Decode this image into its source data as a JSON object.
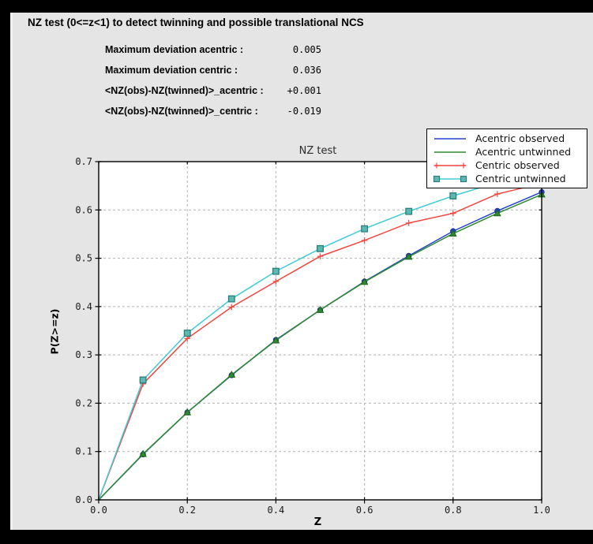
{
  "colors": {
    "frame": "#000000",
    "panel_bg": "#e5e5e5",
    "plot_bg": "#ffffff",
    "grid": "#b3b3b3",
    "axis": "#000000"
  },
  "header": {
    "title": "NZ test (0<=z<1) to detect twinning and possible translational NCS"
  },
  "stats": [
    {
      "label": "Maximum deviation acentric :",
      "value": "0.005"
    },
    {
      "label": "Maximum deviation centric :",
      "value": "0.036"
    },
    {
      "label": "<NZ(obs)-NZ(twinned)>_acentric :",
      "value": "+0.001"
    },
    {
      "label": "<NZ(obs)-NZ(twinned)>_centric :",
      "value": "-0.019"
    }
  ],
  "chart_data": {
    "type": "line",
    "title": "NZ test",
    "xlabel": "Z",
    "ylabel": "P(Z>=z)",
    "xlim": [
      0.0,
      1.0
    ],
    "ylim": [
      0.0,
      0.7
    ],
    "x_ticks": [
      "0.0",
      "0.2",
      "0.4",
      "0.6",
      "0.8",
      "1.0"
    ],
    "y_ticks": [
      "0.0",
      "0.1",
      "0.2",
      "0.3",
      "0.4",
      "0.5",
      "0.6",
      "0.7"
    ],
    "grid": "dashed",
    "legend_position": "upper right",
    "x": [
      0.0,
      0.1,
      0.2,
      0.3,
      0.4,
      0.5,
      0.6,
      0.7,
      0.8,
      0.9,
      1.0
    ],
    "series": [
      {
        "name": "Acentric observed",
        "color": "#2343cf",
        "marker": "circle",
        "marker_fill": "#2343cf",
        "marker_edge": "#16309c",
        "values": [
          0.0,
          0.094,
          0.181,
          0.258,
          0.331,
          0.393,
          0.452,
          0.505,
          0.556,
          0.598,
          0.637
        ]
      },
      {
        "name": "Acentric untwinned",
        "color": "#2e8b2e",
        "marker": "triangle-up",
        "marker_fill": "#2e8b2e",
        "marker_edge": "#1c621c",
        "values": [
          0.0,
          0.095,
          0.181,
          0.259,
          0.33,
          0.393,
          0.451,
          0.503,
          0.551,
          0.593,
          0.632
        ]
      },
      {
        "name": "Centric observed",
        "color": "#f2453d",
        "marker": "plus",
        "marker_fill": "#f2453d",
        "marker_edge": "#f2453d",
        "values": [
          0.0,
          0.24,
          0.334,
          0.399,
          0.452,
          0.504,
          0.537,
          0.573,
          0.593,
          0.633,
          0.655
        ]
      },
      {
        "name": "Centric untwinned",
        "color": "#40cbd6",
        "marker": "square",
        "marker_fill": "#5cb8b2",
        "marker_edge": "#2c7e7b",
        "values": [
          0.0,
          0.248,
          0.345,
          0.416,
          0.473,
          0.52,
          0.561,
          0.597,
          0.629,
          0.657,
          0.683
        ]
      }
    ]
  }
}
